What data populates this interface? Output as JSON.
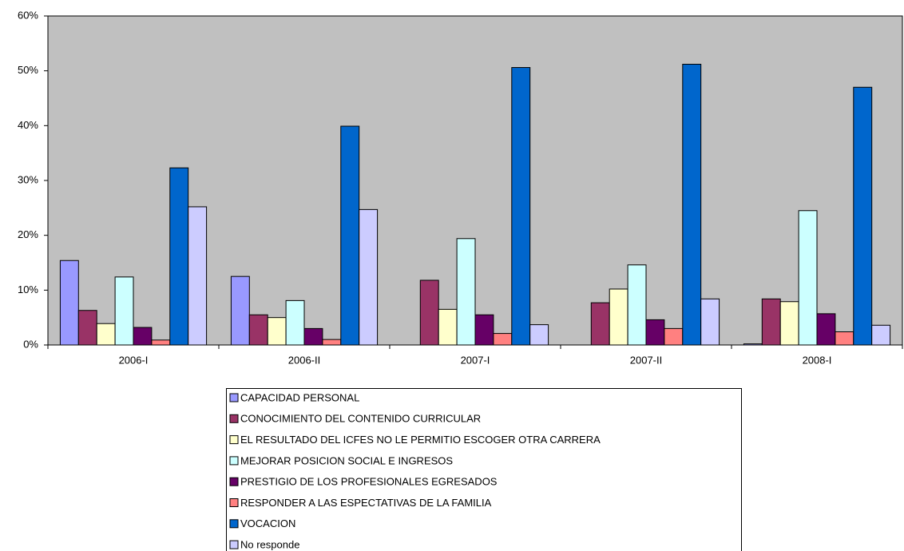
{
  "chart_data": {
    "type": "bar",
    "categories": [
      "2006-I",
      "2006-II",
      "2007-I",
      "2007-II",
      "2008-I"
    ],
    "series": [
      {
        "name": "CAPACIDAD PERSONAL",
        "color": "#9999ff",
        "values": [
          15.4,
          12.5,
          0,
          0,
          0.2
        ]
      },
      {
        "name": "CONOCIMIENTO DEL CONTENIDO CURRICULAR",
        "color": "#993366",
        "values": [
          6.3,
          5.5,
          11.8,
          7.7,
          8.4
        ]
      },
      {
        "name": "EL RESULTADO DEL ICFES NO LE PERMITIO ESCOGER OTRA CARRERA",
        "color": "#ffffcc",
        "values": [
          3.9,
          5.0,
          6.5,
          10.2,
          7.9
        ]
      },
      {
        "name": "MEJORAR POSICION SOCIAL E INGRESOS",
        "color": "#ccffff",
        "values": [
          12.4,
          8.1,
          19.4,
          14.6,
          24.5
        ]
      },
      {
        "name": "PRESTIGIO DE LOS PROFESIONALES EGRESADOS",
        "color": "#660066",
        "values": [
          3.2,
          3.0,
          5.5,
          4.6,
          5.7
        ]
      },
      {
        "name": "RESPONDER A LAS ESPECTATIVAS DE LA FAMILIA",
        "color": "#ff8080",
        "values": [
          0.9,
          1.0,
          2.1,
          3.0,
          2.4
        ]
      },
      {
        "name": "VOCACION",
        "color": "#0066cc",
        "values": [
          32.3,
          39.9,
          50.6,
          51.2,
          47.0
        ]
      },
      {
        "name": "No responde",
        "color": "#ccccff",
        "values": [
          25.2,
          24.7,
          3.7,
          8.4,
          3.6
        ]
      }
    ],
    "ylim": [
      0,
      60
    ],
    "yticks": [
      {
        "value": 0,
        "label": "0%"
      },
      {
        "value": 10,
        "label": "10%"
      },
      {
        "value": 20,
        "label": "20%"
      },
      {
        "value": 30,
        "label": "30%"
      },
      {
        "value": 40,
        "label": "40%"
      },
      {
        "value": 50,
        "label": "50%"
      },
      {
        "value": 60,
        "label": "60%"
      }
    ],
    "grid": false,
    "plot_background": "#c0c0c0"
  }
}
